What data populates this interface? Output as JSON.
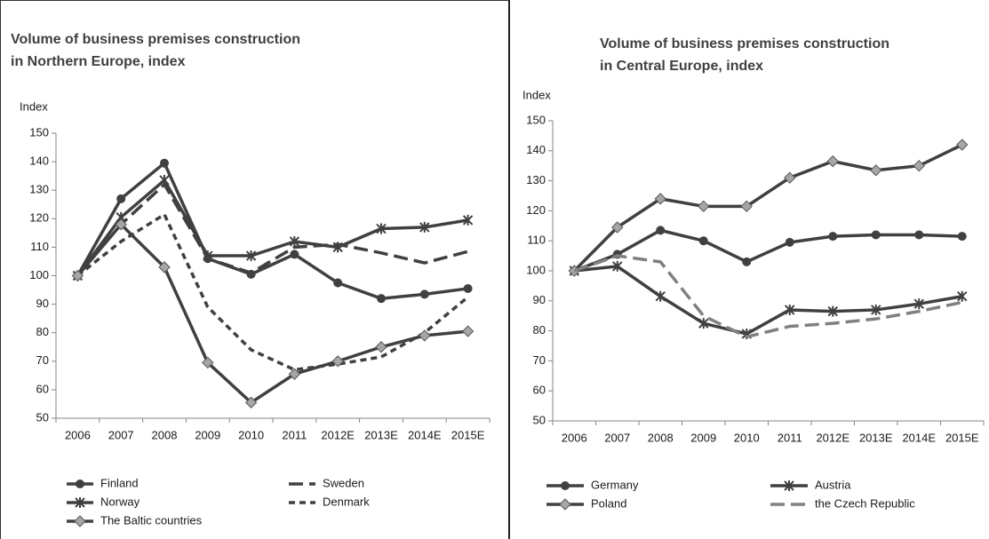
{
  "chart_data": [
    {
      "type": "line",
      "title": [
        "Volume of business premises construction",
        "in Northern Europe, index"
      ],
      "y_label": "Index",
      "categories": [
        "2006",
        "2007",
        "2008",
        "2009",
        "2010",
        "2011",
        "2012E",
        "2013E",
        "2014E",
        "2015E"
      ],
      "ylim": [
        50,
        150
      ],
      "yticks": [
        50,
        60,
        70,
        80,
        90,
        100,
        110,
        120,
        130,
        140,
        150
      ],
      "series": [
        {
          "name": "Finland",
          "color": "#404040",
          "marker": "circle",
          "dash": "solid",
          "values": [
            100,
            127,
            139.5,
            106,
            100.5,
            107.5,
            97.5,
            92,
            93.5,
            95.5
          ]
        },
        {
          "name": "Sweden",
          "color": "#404040",
          "marker": "none",
          "dash": "long",
          "values": [
            100,
            118,
            132,
            106,
            101,
            110,
            111,
            108,
            104.5,
            108.5
          ]
        },
        {
          "name": "Norway",
          "color": "#404040",
          "marker": "star",
          "dash": "solid",
          "values": [
            100,
            120.5,
            133.5,
            107,
            107,
            112,
            110,
            116.5,
            117,
            119.5
          ]
        },
        {
          "name": "Denmark",
          "color": "#404040",
          "marker": "none",
          "dash": "short",
          "values": [
            100,
            112,
            121.5,
            89,
            74,
            67,
            69,
            71.5,
            80,
            92.5
          ]
        },
        {
          "name": "The Baltic countries",
          "color": "#404040",
          "marker": "diamond",
          "dash": "solid",
          "values": [
            100,
            118,
            103,
            69.5,
            55.5,
            65.5,
            70,
            75,
            79,
            80.5
          ]
        }
      ]
    },
    {
      "type": "line",
      "title": [
        "Volume of business premises construction",
        "in Central Europe, index"
      ],
      "y_label": "Index",
      "categories": [
        "2006",
        "2007",
        "2008",
        "2009",
        "2010",
        "2011",
        "2012E",
        "2013E",
        "2014E",
        "2015E"
      ],
      "ylim": [
        50,
        150
      ],
      "yticks": [
        50,
        60,
        70,
        80,
        90,
        100,
        110,
        120,
        130,
        140,
        150
      ],
      "series": [
        {
          "name": "Germany",
          "color": "#404040",
          "marker": "circle",
          "dash": "solid",
          "values": [
            100,
            105.5,
            113.5,
            110,
            103,
            109.5,
            111.5,
            112,
            112,
            111.5
          ]
        },
        {
          "name": "Austria",
          "color": "#404040",
          "marker": "star",
          "dash": "solid",
          "values": [
            100,
            101.5,
            91.5,
            82.5,
            79,
            87,
            86.5,
            87,
            89,
            91.5
          ]
        },
        {
          "name": "Poland",
          "color": "#404040",
          "marker": "diamond",
          "dash": "solid",
          "values": [
            100,
            114.5,
            124,
            121.5,
            121.5,
            131,
            136.5,
            133.5,
            135,
            142
          ]
        },
        {
          "name": "the Czech Republic",
          "color": "#808080",
          "marker": "none",
          "dash": "long",
          "values": [
            100,
            105,
            103,
            85,
            78,
            81.5,
            82.5,
            84,
            86.5,
            89.5
          ]
        }
      ]
    }
  ]
}
